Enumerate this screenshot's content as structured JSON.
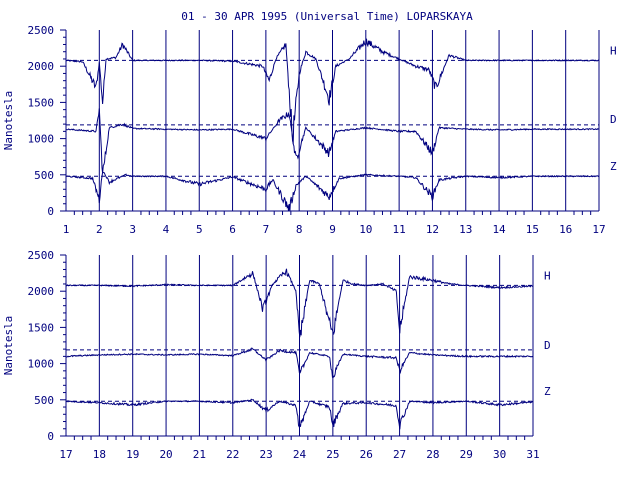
{
  "page": {
    "background": "#ffffff"
  },
  "chart_data": [
    {
      "type": "line",
      "title": "01 - 30 APR 1995 (Universal Time) LOPARSKAYA",
      "ylabel": "Nanotesla",
      "xlim": [
        1,
        17
      ],
      "ylim": [
        0,
        2500
      ],
      "x_ticks": [
        "1",
        "2",
        "3",
        "4",
        "5",
        "6",
        "7",
        "8",
        "9",
        "10",
        "11",
        "12",
        "13",
        "14",
        "15",
        "16",
        "17"
      ],
      "y_ticks": [
        "0",
        "500",
        "1000",
        "1500",
        "2000",
        "2500"
      ],
      "grid": true,
      "color": "#00007f",
      "series": [
        {
          "name": "H",
          "baseline": 2080,
          "ref": 2080,
          "x": [
            1,
            1.5,
            1.9,
            2.0,
            2.1,
            2.2,
            2.5,
            2.7,
            3,
            4,
            5,
            6,
            6.9,
            7.1,
            7.3,
            7.6,
            7.8,
            8,
            8.2,
            8.5,
            8.9,
            9.1,
            9.5,
            10,
            10.5,
            11,
            11.5,
            11.9,
            12.1,
            12.5,
            13,
            14,
            15,
            16,
            17
          ],
          "y": [
            2080,
            2060,
            1700,
            2050,
            1500,
            2100,
            2120,
            2300,
            2080,
            2080,
            2080,
            2070,
            2000,
            1800,
            2100,
            2300,
            1000,
            1900,
            2200,
            2100,
            1550,
            2000,
            2100,
            2350,
            2200,
            2100,
            2000,
            1950,
            1700,
            2150,
            2080,
            2080,
            2080,
            2080,
            2080
          ]
        },
        {
          "name": "D",
          "baseline": 1130,
          "ref": 1190,
          "x": [
            1,
            1.9,
            2.0,
            2.1,
            2.3,
            2.7,
            3,
            4,
            5,
            6,
            7.0,
            7.4,
            7.7,
            7.9,
            8.2,
            8.9,
            9.1,
            10,
            11,
            11.5,
            12.0,
            12.2,
            13,
            14,
            15,
            16,
            17
          ],
          "y": [
            1130,
            1100,
            1400,
            500,
            1150,
            1200,
            1140,
            1130,
            1120,
            1130,
            1000,
            1250,
            1350,
            700,
            1150,
            800,
            1100,
            1150,
            1100,
            1100,
            800,
            1150,
            1130,
            1120,
            1130,
            1130,
            1130
          ]
        },
        {
          "name": "Z",
          "baseline": 480,
          "ref": 480,
          "x": [
            1,
            1.8,
            2.0,
            2.1,
            2.3,
            2.8,
            3,
            4,
            5,
            6,
            7.0,
            7.2,
            7.7,
            7.9,
            8.2,
            8.9,
            9.2,
            10,
            11,
            11.5,
            12.0,
            12.2,
            13,
            14,
            15,
            16,
            17
          ],
          "y": [
            480,
            450,
            150,
            560,
            400,
            500,
            480,
            480,
            370,
            470,
            300,
            430,
            30,
            350,
            480,
            200,
            450,
            500,
            480,
            460,
            200,
            430,
            480,
            460,
            480,
            480,
            480
          ]
        }
      ]
    },
    {
      "type": "line",
      "ylabel": "Nanotesla",
      "xlim": [
        17,
        31
      ],
      "ylim": [
        0,
        2500
      ],
      "x_ticks": [
        "17",
        "18",
        "19",
        "20",
        "21",
        "22",
        "23",
        "24",
        "25",
        "26",
        "27",
        "28",
        "29",
        "30",
        "31"
      ],
      "y_ticks": [
        "0",
        "500",
        "1000",
        "1500",
        "2000",
        "2500"
      ],
      "grid": true,
      "color": "#00007f",
      "series": [
        {
          "name": "H",
          "baseline": 2080,
          "ref": 2080,
          "x": [
            17,
            18,
            19,
            20,
            21,
            22,
            22.6,
            22.9,
            23.2,
            23.6,
            23.9,
            24.0,
            24.3,
            24.6,
            24.9,
            25.0,
            25.3,
            25.6,
            26,
            26.5,
            26.9,
            27.0,
            27.3,
            28,
            28.5,
            29,
            30,
            31
          ],
          "y": [
            2080,
            2080,
            2070,
            2090,
            2080,
            2080,
            2250,
            1750,
            2100,
            2280,
            2000,
            1300,
            2150,
            2100,
            1550,
            1400,
            2150,
            2100,
            2080,
            2100,
            2000,
            1450,
            2200,
            2150,
            2100,
            2080,
            2050,
            2070
          ]
        },
        {
          "name": "D",
          "baseline": 1120,
          "ref": 1190,
          "x": [
            17,
            18,
            19,
            20,
            21,
            22,
            22.6,
            23.0,
            23.4,
            23.9,
            24.0,
            24.3,
            24.9,
            25.0,
            25.3,
            26,
            26.9,
            27.0,
            27.3,
            28,
            29,
            30,
            31
          ],
          "y": [
            1100,
            1120,
            1130,
            1120,
            1130,
            1110,
            1200,
            1050,
            1180,
            1150,
            850,
            1150,
            1100,
            800,
            1130,
            1100,
            1080,
            900,
            1150,
            1120,
            1100,
            1100,
            1100
          ]
        },
        {
          "name": "Z",
          "baseline": 480,
          "ref": 480,
          "x": [
            17,
            18,
            19,
            20,
            21,
            22,
            22.6,
            23.0,
            23.4,
            23.9,
            24.0,
            24.3,
            24.9,
            25.0,
            25.3,
            26,
            26.9,
            27.0,
            27.3,
            28,
            29,
            30,
            31
          ],
          "y": [
            480,
            460,
            430,
            480,
            480,
            460,
            500,
            350,
            480,
            420,
            100,
            480,
            400,
            150,
            450,
            460,
            420,
            150,
            480,
            460,
            480,
            430,
            470
          ]
        }
      ]
    }
  ]
}
